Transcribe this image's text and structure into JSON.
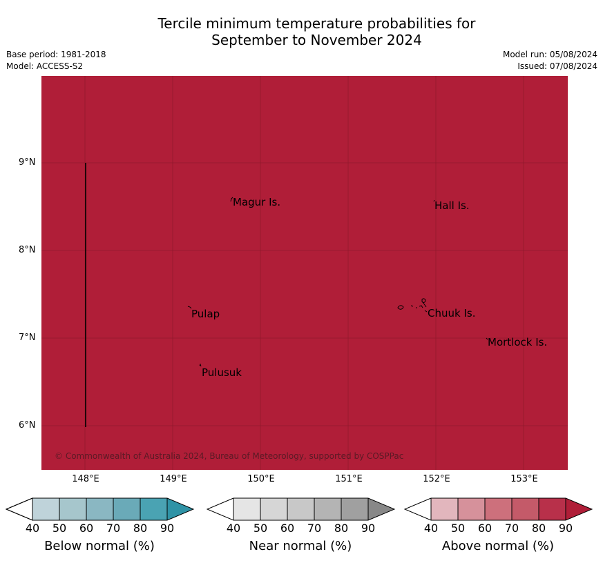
{
  "title_line1": "Tercile minimum temperature probabilities for",
  "title_line2": "September to November 2024",
  "base_period": "Base period: 1981-2018",
  "model": "Model: ACCESS-S2",
  "model_run": "Model run: 05/08/2024",
  "issued": "Issued: 07/08/2024",
  "map": {
    "fill_color": "#b01e38",
    "lat_labels": [
      "9°N",
      "8°N",
      "7°N",
      "6°N"
    ],
    "lon_labels": [
      "148°E",
      "149°E",
      "150°E",
      "151°E",
      "152°E",
      "153°E"
    ],
    "places": [
      {
        "name": "Magur Is."
      },
      {
        "name": "Hall Is."
      },
      {
        "name": "Pulap"
      },
      {
        "name": "Chuuk Is."
      },
      {
        "name": "Mortlock Is."
      },
      {
        "name": "Pulusuk"
      }
    ],
    "copyright": "© Commonwealth of Australia 2024, Bureau of Meteorology, supported by COSPPac"
  },
  "colorbars": [
    {
      "label": "Below normal (%)",
      "ticks": [
        "40",
        "50",
        "60",
        "70",
        "80",
        "90"
      ],
      "colors": [
        "#ffffff",
        "#bfd3da",
        "#a6c6cc",
        "#8ab7c2",
        "#6aaab8",
        "#4aa3b3",
        "#2f93a6"
      ]
    },
    {
      "label": "Near normal (%)",
      "ticks": [
        "40",
        "50",
        "60",
        "70",
        "80",
        "90"
      ],
      "colors": [
        "#ffffff",
        "#e5e5e5",
        "#d6d6d6",
        "#c8c8c8",
        "#b4b4b4",
        "#a0a0a0",
        "#888888"
      ]
    },
    {
      "label": "Above normal (%)",
      "ticks": [
        "40",
        "50",
        "60",
        "70",
        "80",
        "90"
      ],
      "colors": [
        "#ffffff",
        "#e2b6bd",
        "#d6919b",
        "#cd707c",
        "#c45a69",
        "#b8304a",
        "#b01e38"
      ]
    }
  ]
}
